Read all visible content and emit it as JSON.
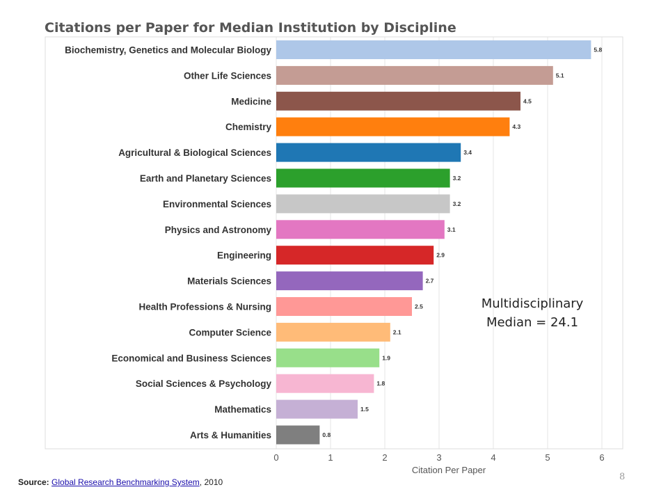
{
  "chart_data": {
    "type": "bar",
    "orientation": "horizontal",
    "title": "Citations per Paper for Median Institution by Discipline",
    "xlabel": "Citation Per Paper",
    "ylabel": "",
    "xlim": [
      0,
      6
    ],
    "xticks": [
      "0",
      "1",
      "2",
      "3",
      "4",
      "5",
      "6"
    ],
    "grid": true,
    "categories": [
      "Biochemistry, Genetics and Molecular Biology",
      "Other Life Sciences",
      "Medicine",
      "Chemistry",
      "Agricultural & Biological Sciences",
      "Earth and Planetary Sciences",
      "Environmental Sciences",
      "Physics and Astronomy",
      "Engineering",
      "Materials Sciences",
      "Health Professions & Nursing",
      "Computer Science",
      "Economical and Business Sciences",
      "Social Sciences & Psychology",
      "Mathematics",
      "Arts & Humanities"
    ],
    "values": [
      5.8,
      5.1,
      4.5,
      4.3,
      3.4,
      3.2,
      3.2,
      3.1,
      2.9,
      2.7,
      2.5,
      2.1,
      1.9,
      1.8,
      1.5,
      0.8
    ],
    "value_labels": [
      "5.8",
      "5.1",
      "4.5",
      "4.3",
      "3.4",
      "3.2",
      "3.2",
      "3.1",
      "2.9",
      "2.7",
      "2.5",
      "2.1",
      "1.9",
      "1.8",
      "1.5",
      "0.8"
    ],
    "colors": [
      "#aec7e8",
      "#c49c94",
      "#8c564b",
      "#ff7f0e",
      "#1f77b4",
      "#2ca02c",
      "#c7c7c7",
      "#e377c2",
      "#d62728",
      "#9467bd",
      "#ff9896",
      "#ffbb78",
      "#98df8a",
      "#f7b6d2",
      "#c5b0d5",
      "#7f7f7f"
    ],
    "annotation": [
      "Multidisciplinary",
      "Median = 24.1"
    ]
  },
  "footer": {
    "source_label": "Source:",
    "source_link": "Global Research Benchmarking System",
    "source_year": ", 2010",
    "page_number": "8"
  }
}
